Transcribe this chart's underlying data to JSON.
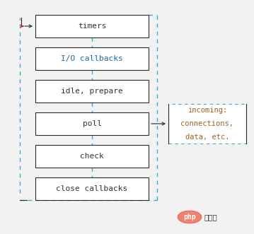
{
  "bg_color": "#f2f2f2",
  "boxes": [
    {
      "label": "timers",
      "color_text": "#333333"
    },
    {
      "label": "I/O callbacks",
      "color_text": "#1a6aaa"
    },
    {
      "label": "idle, prepare",
      "color_text": "#333333"
    },
    {
      "label": "poll",
      "color_text": "#333333"
    },
    {
      "label": "check",
      "color_text": "#333333"
    },
    {
      "label": "close callbacks",
      "color_text": "#333333"
    }
  ],
  "side_box": {
    "lines": [
      "incoming:",
      "connections,",
      "data, etc."
    ],
    "color_text": "#a06020"
  },
  "box_border_color": "#2a2a2a",
  "dashed_color": "#3aaccc",
  "arrow_color": "#2a2a2a",
  "entry_arrow_color": "#cc2222"
}
